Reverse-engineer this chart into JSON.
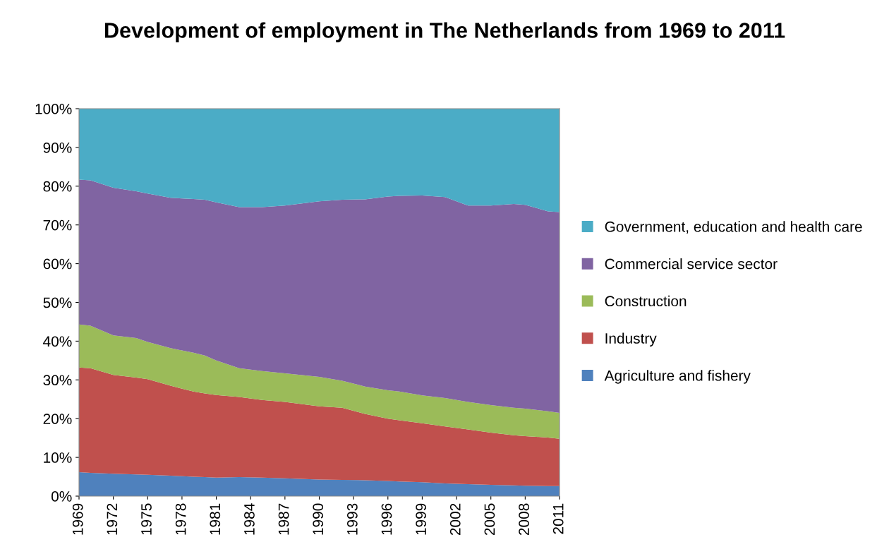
{
  "chart_data": {
    "type": "area",
    "stacked": true,
    "title": "Development of employment in The Netherlands from 1969 to 2011",
    "x": [
      1969,
      1970,
      1972,
      1974,
      1975,
      1977,
      1979,
      1980,
      1981,
      1983,
      1985,
      1987,
      1990,
      1992,
      1994,
      1996,
      1997,
      1999,
      2001,
      2003,
      2005,
      2007,
      2008,
      2010,
      2011
    ],
    "series": [
      {
        "name": "Agriculture and fishery",
        "color": "#4f81bd",
        "values": [
          6.2,
          6.0,
          5.8,
          5.6,
          5.5,
          5.3,
          5.0,
          4.9,
          4.8,
          4.9,
          4.8,
          4.6,
          4.3,
          4.2,
          4.1,
          3.9,
          3.8,
          3.6,
          3.3,
          3.1,
          2.9,
          2.8,
          2.7,
          2.6,
          2.6
        ]
      },
      {
        "name": "Industry",
        "color": "#c0504d",
        "values": [
          27.0,
          27.0,
          25.5,
          25.0,
          24.7,
          23.2,
          22.0,
          21.6,
          21.3,
          20.7,
          20.0,
          19.7,
          18.9,
          18.6,
          17.1,
          16.1,
          15.8,
          15.2,
          14.7,
          14.1,
          13.5,
          12.9,
          12.8,
          12.5,
          12.2
        ]
      },
      {
        "name": "Construction",
        "color": "#9bbb59",
        "values": [
          11.1,
          11.0,
          10.2,
          10.2,
          9.6,
          9.7,
          10.0,
          9.8,
          8.9,
          7.4,
          7.5,
          7.4,
          7.6,
          7.0,
          7.1,
          7.3,
          7.4,
          7.2,
          7.3,
          7.1,
          7.1,
          7.1,
          7.1,
          6.8,
          6.7
        ]
      },
      {
        "name": "Commercial service sector",
        "color": "#8064a2",
        "values": [
          37.4,
          37.5,
          38.1,
          37.9,
          38.3,
          38.8,
          39.7,
          40.2,
          40.8,
          41.6,
          42.3,
          43.3,
          45.3,
          46.7,
          48.3,
          50.0,
          50.5,
          51.6,
          51.9,
          50.7,
          51.5,
          52.6,
          52.6,
          51.6,
          51.8
        ]
      },
      {
        "name": "Government, education and health care",
        "color": "#4bacc6",
        "values": [
          18.3,
          18.5,
          20.4,
          21.3,
          21.9,
          23.0,
          23.3,
          23.5,
          24.2,
          25.4,
          25.4,
          25.0,
          23.9,
          23.5,
          23.4,
          22.7,
          22.5,
          22.4,
          22.8,
          25.0,
          25.0,
          24.6,
          24.8,
          26.5,
          26.7
        ]
      }
    ],
    "xlim": [
      1969,
      2011
    ],
    "xticks": [
      1969,
      1972,
      1975,
      1978,
      1981,
      1984,
      1987,
      1990,
      1993,
      1996,
      1999,
      2002,
      2005,
      2008,
      2011
    ],
    "ylim": [
      0,
      100
    ],
    "yticks": [
      {
        "value": 0,
        "label": "0%"
      },
      {
        "value": 10,
        "label": "10%"
      },
      {
        "value": 20,
        "label": "20%"
      },
      {
        "value": 30,
        "label": "30%"
      },
      {
        "value": 40,
        "label": "40%"
      },
      {
        "value": 50,
        "label": "50%"
      },
      {
        "value": 60,
        "label": "60%"
      },
      {
        "value": 70,
        "label": "70%"
      },
      {
        "value": 80,
        "label": "80%"
      },
      {
        "value": 90,
        "label": "90%"
      },
      {
        "value": 100,
        "label": "100%"
      }
    ],
    "legend": "right"
  }
}
